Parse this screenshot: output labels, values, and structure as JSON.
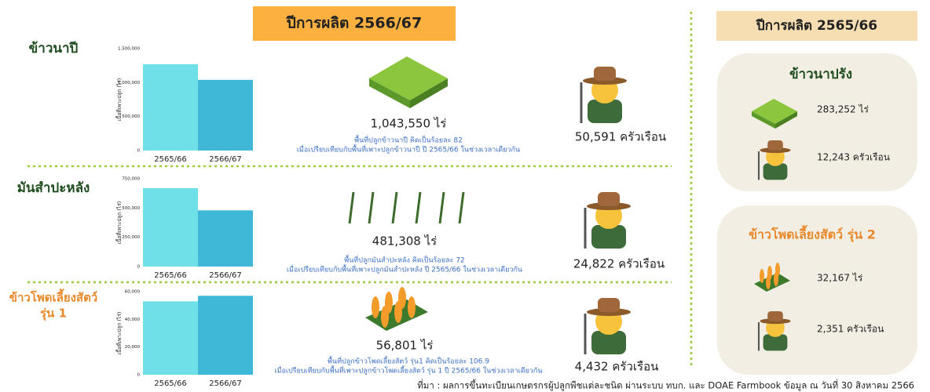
{
  "header_current": "ปีการผลิต 2566/67",
  "header_previous": "ปีการผลิต 2565/66",
  "chart_data": [
    {
      "type": "bar",
      "ylabel": "เนื้อที่เพาะปลูก (ไร่)",
      "categories": [
        "2565/66",
        "2566/67"
      ],
      "values": [
        1270000,
        1040000
      ],
      "colors": [
        "#6fe0e8",
        "#3fb7d6"
      ],
      "ylim": [
        0,
        1500000
      ],
      "yticks": [
        0,
        {
          "value": 500000,
          "label": "500,000"
        },
        {
          "value": 1000000,
          "label": "1,000,000"
        },
        {
          "value": 1500000,
          "label": "1,500,000"
        }
      ]
    },
    {
      "type": "bar",
      "ylabel": "เนื้อที่เพาะปลูก (ไร่)",
      "categories": [
        "2565/66",
        "2566/67"
      ],
      "values": [
        670000,
        480000
      ],
      "colors": [
        "#6fe0e8",
        "#3fb7d6"
      ],
      "ylim": [
        0,
        750000
      ],
      "yticks": [
        0,
        {
          "value": 250000,
          "label": "250,000"
        },
        {
          "value": 500000,
          "label": "500,000"
        },
        {
          "value": 750000,
          "label": "750,000"
        }
      ]
    },
    {
      "type": "bar",
      "ylabel": "เนื้อที่เพาะปลูก (ไร่)",
      "categories": [
        "2565/66",
        "2566/67"
      ],
      "values": [
        53000,
        57000
      ],
      "colors": [
        "#6fe0e8",
        "#3fb7d6"
      ],
      "ylim": [
        0,
        60000
      ],
      "yticks": [
        0,
        {
          "value": 20000,
          "label": "20,000"
        },
        {
          "value": 40000,
          "label": "40,000"
        },
        {
          "value": 60000,
          "label": "60,000"
        }
      ]
    }
  ],
  "rows": [
    {
      "name_lines": [
        "ข้าวนาปี"
      ],
      "area": "1,043,550 ไร่",
      "note": [
        "พื้นที่ปลูกข้าวนาปี คิดเป็นร้อยละ 82",
        "เมื่อเปรียบเทียบกับพื้นที่เพาะปลูกข้าวนาปี ปี 2565/66 ในช่วงเวลาเดียวกัน"
      ],
      "households": "50,591 ครัวเรือน"
    },
    {
      "name_lines": [
        "มันสำปะหลัง"
      ],
      "area": "481,308 ไร่",
      "note": [
        "พื้นที่ปลูกมันสำปะหลัง คิดเป็นร้อยละ 72",
        "เมื่อเปรียบเทียบกับพื้นที่เพาะปลูกมันสำปะหลัง ปี 2565/66 ในช่วงเวลาเดียวกัน"
      ],
      "households": "24,822 ครัวเรือน"
    },
    {
      "name_lines": [
        "ข้าวโพดเลี้ยงสัตว์",
        "รุ่น 1"
      ],
      "area": "56,801 ไร่",
      "note": [
        "พื้นที่ปลูกข้าวโพดเลี้ยงสัตว์ รุ่น1 คิดเป็นร้อยละ 106.9",
        "เมื่อเปรียบเทียบกับพื้นที่เพาะปลูกข้าวโพดเลี้ยงสัตว์ รุ่น 1  ปี 2565/66 ในช่วงเวลาเดียวกัน"
      ],
      "households": "4,432 ครัวเรือน"
    }
  ],
  "previous": [
    {
      "name": "ข้าวนาปรัง",
      "area": "283,252 ไร่",
      "households": "12,243 ครัวเรือน"
    },
    {
      "name": "ข้าวโพดเลี้ยงสัตว์ รุ่น 2",
      "area": "32,167 ไร่",
      "households": "2,351 ครัวเรือน"
    }
  ],
  "source": "ที่มา : ผลการขึ้นทะเบียนเกษตรกรผู้ปลูกพืชแต่ละชนิด ผ่านระบบ ทบก. และ DOAE Farmbook ข้อมูล ณ วันที่ 30 สิงหาคม 2566"
}
